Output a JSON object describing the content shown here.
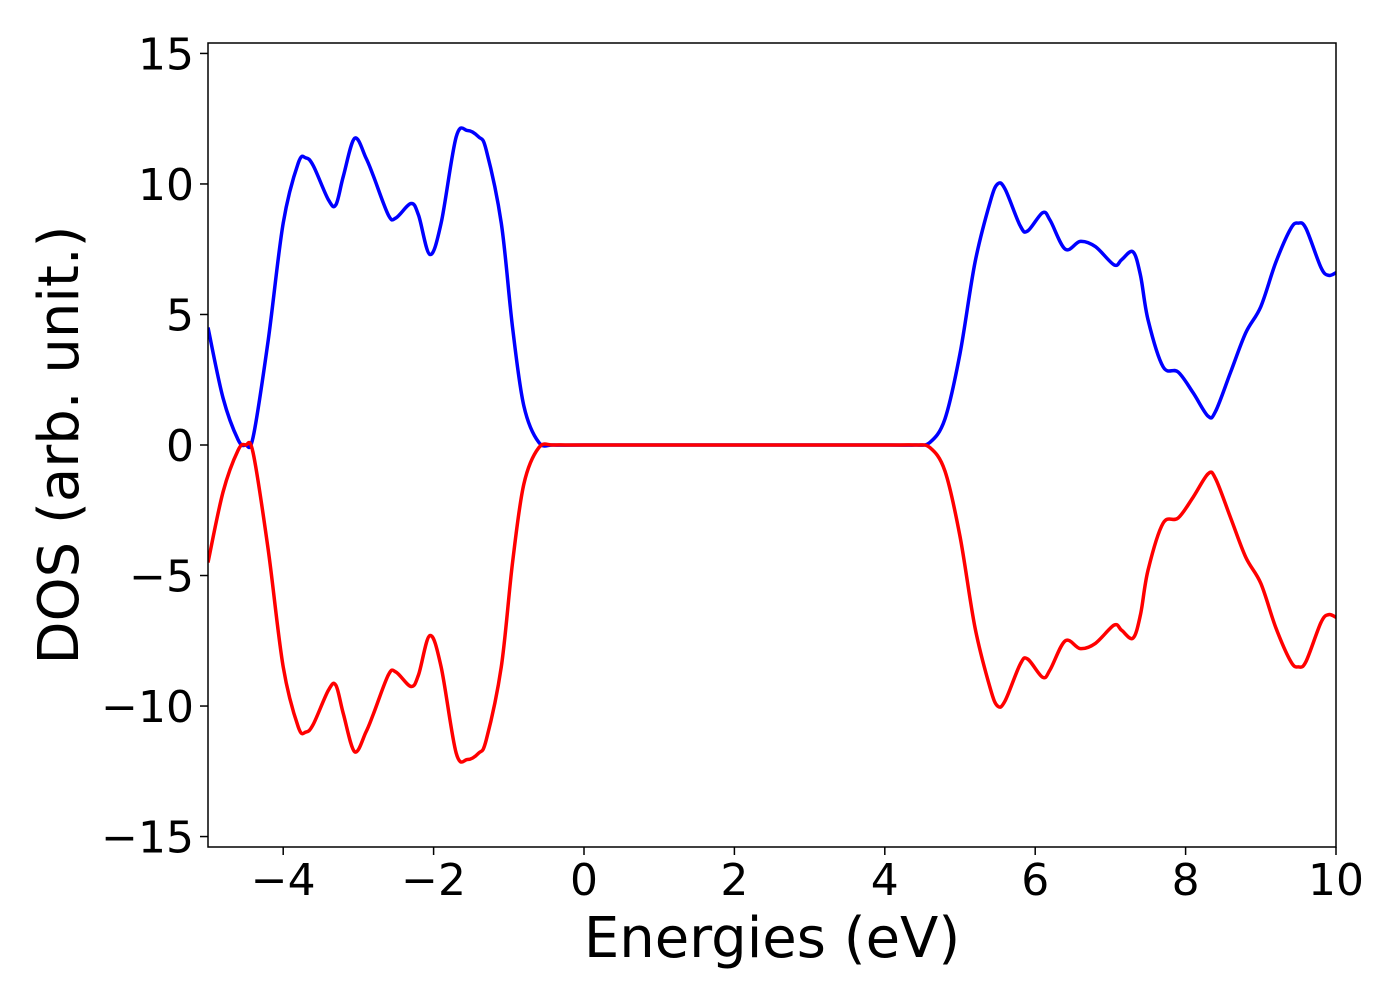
{
  "chart_data": {
    "type": "line",
    "xlabel": "Energies (eV)",
    "ylabel": "DOS (arb. unit.)",
    "x": [
      -5,
      -4.8,
      -4.6,
      -4.5,
      -4.4,
      -4.2,
      -4.0,
      -3.8,
      -3.7,
      -3.6,
      -3.4,
      -3.3,
      -3.2,
      -3.05,
      -2.9,
      -2.8,
      -2.6,
      -2.5,
      -2.3,
      -2.2,
      -2.05,
      -1.9,
      -1.7,
      -1.55,
      -1.4,
      -1.3,
      -1.1,
      -0.95,
      -0.8,
      -0.6,
      -0.4,
      0,
      2,
      4,
      4.4,
      4.6,
      4.8,
      5.0,
      5.2,
      5.4,
      5.5,
      5.6,
      5.8,
      5.9,
      6.1,
      6.2,
      6.4,
      6.6,
      6.8,
      7.05,
      7.15,
      7.3,
      7.4,
      7.5,
      7.7,
      7.9,
      8.1,
      8.3,
      8.4,
      8.6,
      8.8,
      9.0,
      9.2,
      9.4,
      9.5,
      9.6,
      9.8,
      9.9,
      10.0
    ],
    "series": [
      {
        "color": "#0000ff",
        "values": [
          4.5,
          1.8,
          0.2,
          0,
          0.3,
          4,
          8.5,
          10.8,
          11.0,
          10.7,
          9.4,
          9.2,
          10.3,
          11.75,
          11.0,
          10.3,
          8.8,
          8.7,
          9.25,
          8.8,
          7.3,
          8.5,
          11.8,
          12.05,
          11.8,
          11.3,
          8.5,
          4.5,
          1.5,
          0.1,
          0,
          0,
          0,
          0,
          0,
          0.1,
          1.0,
          3.5,
          7.0,
          9.3,
          10.0,
          9.8,
          8.4,
          8.2,
          8.9,
          8.6,
          7.5,
          7.8,
          7.6,
          6.9,
          7.1,
          7.4,
          6.5,
          4.8,
          3.0,
          2.8,
          2.0,
          1.1,
          1.3,
          2.8,
          4.3,
          5.3,
          7.0,
          8.3,
          8.5,
          8.3,
          6.8,
          6.5,
          6.6
        ]
      },
      {
        "color": "#ff0000",
        "values": [
          -4.5,
          -1.8,
          -0.2,
          0,
          -0.3,
          -4,
          -8.5,
          -10.8,
          -11.0,
          -10.7,
          -9.4,
          -9.2,
          -10.3,
          -11.75,
          -11.0,
          -10.3,
          -8.8,
          -8.7,
          -9.25,
          -8.8,
          -7.3,
          -8.5,
          -11.8,
          -12.05,
          -11.8,
          -11.3,
          -8.5,
          -4.5,
          -1.5,
          -0.1,
          0,
          0,
          0,
          0,
          0,
          -0.1,
          -1.0,
          -3.5,
          -7.0,
          -9.3,
          -10.0,
          -9.8,
          -8.4,
          -8.2,
          -8.9,
          -8.6,
          -7.5,
          -7.8,
          -7.6,
          -6.9,
          -7.1,
          -7.4,
          -6.5,
          -4.8,
          -3.0,
          -2.8,
          -2.0,
          -1.1,
          -1.3,
          -2.8,
          -4.3,
          -5.3,
          -7.0,
          -8.3,
          -8.5,
          -8.3,
          -6.8,
          -6.5,
          -6.6
        ]
      }
    ],
    "xlim": [
      -5,
      10
    ],
    "xticks": [
      {
        "value": -4,
        "label": "−4"
      },
      {
        "value": -2,
        "label": "−2"
      },
      0,
      2,
      4,
      6,
      8,
      10
    ],
    "ylim": [
      -15.4,
      15.4
    ],
    "yticks": [
      {
        "value": -15,
        "label": "−15"
      },
      {
        "value": -10,
        "label": "−10"
      },
      {
        "value": -5,
        "label": "−5"
      },
      0,
      5,
      10,
      15
    ],
    "grid": false
  }
}
